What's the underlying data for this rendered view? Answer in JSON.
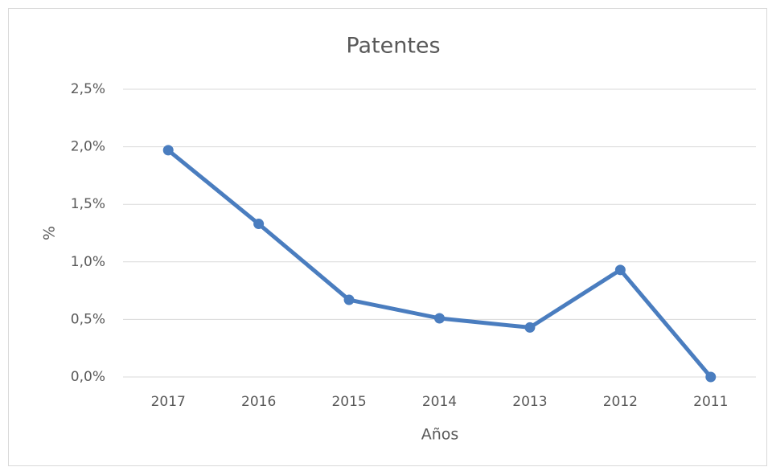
{
  "chart_data": {
    "type": "line",
    "title": "Patentes",
    "x_label": "Años",
    "y_label": "%",
    "categories": [
      "2017",
      "2016",
      "2015",
      "2014",
      "2013",
      "2012",
      "2011"
    ],
    "series": [
      {
        "name": "Patentes",
        "color": "#4a7dbf",
        "values": [
          1.97,
          1.33,
          0.67,
          0.51,
          0.43,
          0.93,
          0
        ]
      }
    ],
    "ylim": [
      0,
      2.5
    ],
    "yticks": [
      {
        "value": 0,
        "label": "0,0%"
      },
      {
        "value": 0.5,
        "label": "0,5%"
      },
      {
        "value": 1,
        "label": "1,0%"
      },
      {
        "value": 1.5,
        "label": "1,5%"
      },
      {
        "value": 2,
        "label": "2,0%"
      },
      {
        "value": 2.5,
        "label": "2,5%"
      }
    ],
    "grid": true
  }
}
